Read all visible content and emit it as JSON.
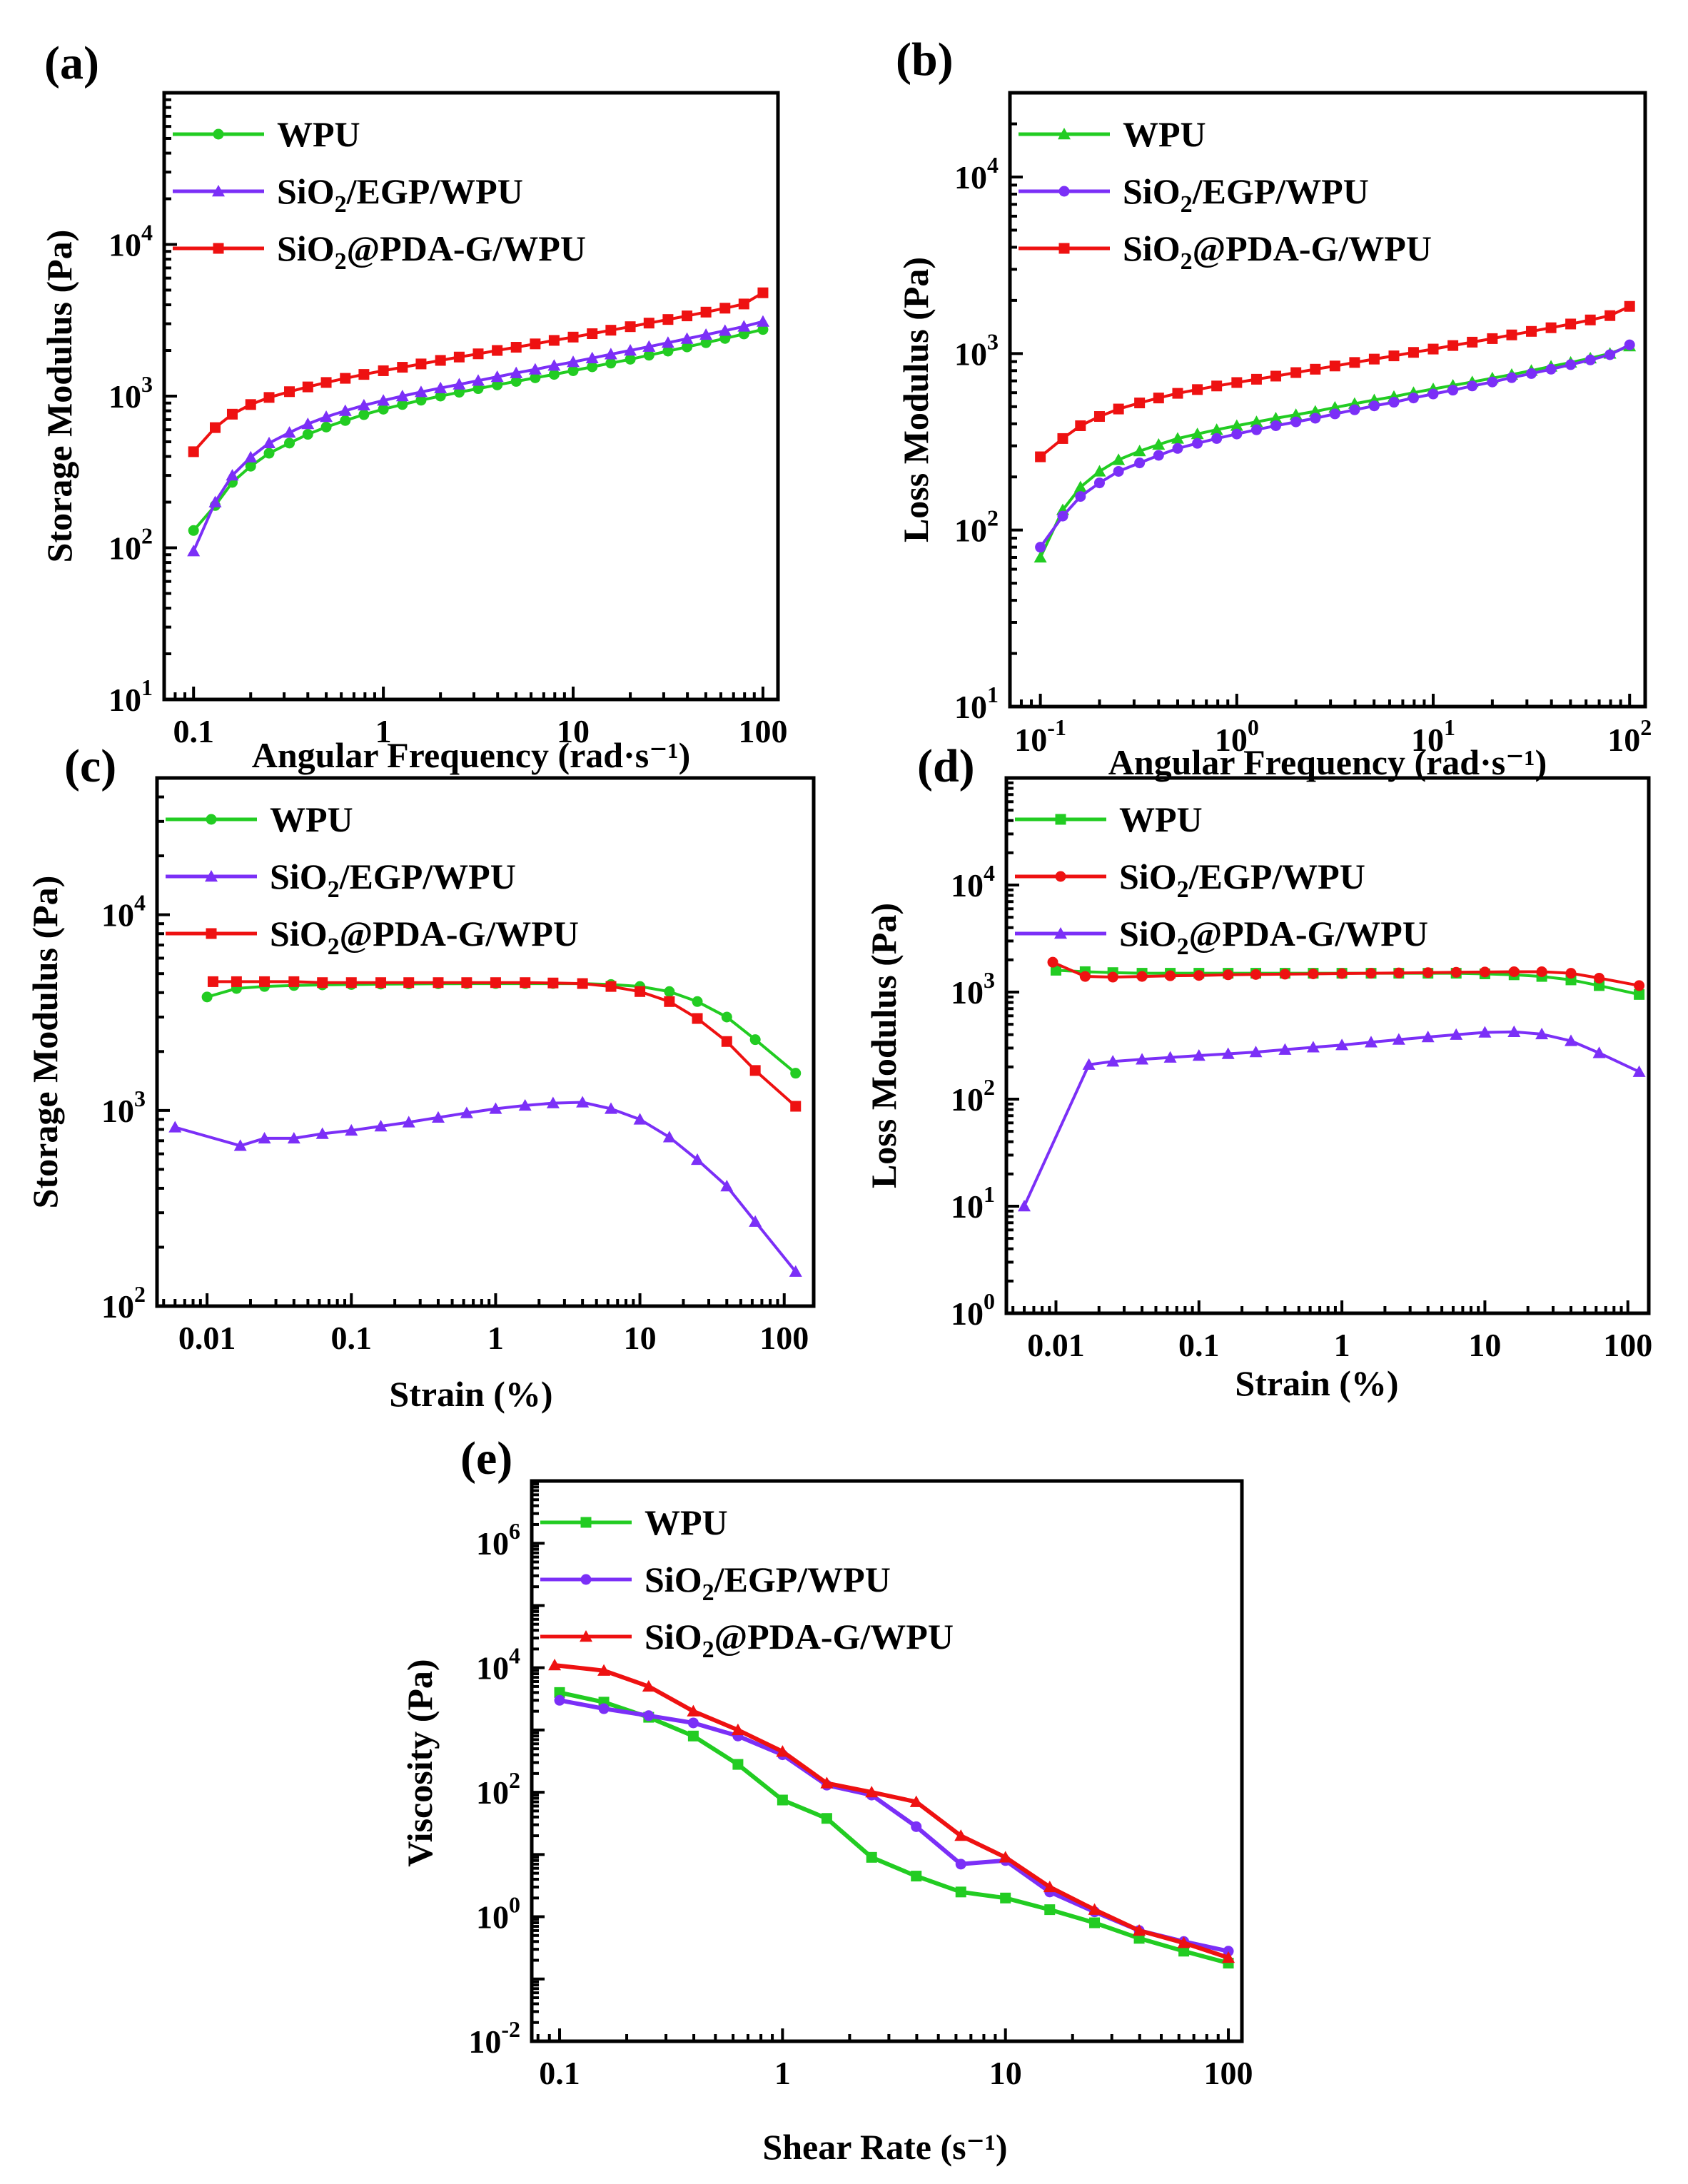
{
  "chart_data": [
    {
      "type": "line",
      "panel": "(a)",
      "xlabel": "Angular Frequency (rad·s⁻¹)",
      "ylabel": "Storage Modulus (Pa)",
      "xscale": "log",
      "yscale": "log",
      "xlim": [
        0.07,
        120
      ],
      "ylim": [
        10,
        100000
      ],
      "xticks": [
        0.1,
        1,
        10,
        100
      ],
      "xtick_labels": [
        "0.1",
        "1",
        "10",
        "100"
      ],
      "yticks": [
        10,
        100,
        1000,
        10000
      ],
      "ytick_labels": [
        {
          "base": "10",
          "exp": "1"
        },
        {
          "base": "10",
          "exp": "2"
        },
        {
          "base": "10",
          "exp": "3"
        },
        {
          "base": "10",
          "exp": "4"
        }
      ],
      "legend": "top-left",
      "series": [
        {
          "name": "WPU",
          "color": "#22cc22",
          "marker": "circle",
          "x": [
            0.1,
            0.13,
            0.16,
            0.2,
            0.25,
            0.32,
            0.4,
            0.5,
            0.63,
            0.79,
            1,
            1.26,
            1.58,
            2,
            2.51,
            3.16,
            3.98,
            5.01,
            6.31,
            7.94,
            10,
            12.6,
            15.8,
            20,
            25.1,
            31.6,
            39.8,
            50.1,
            63.1,
            79.4,
            100
          ],
          "y": [
            130,
            190,
            270,
            345,
            420,
            490,
            560,
            625,
            690,
            755,
            820,
            880,
            940,
            1000,
            1060,
            1120,
            1185,
            1250,
            1320,
            1390,
            1470,
            1560,
            1650,
            1750,
            1860,
            1980,
            2110,
            2250,
            2400,
            2570,
            2750
          ]
        },
        {
          "name": "SiO₂/EGP/WPU",
          "color": "#7b2ff7",
          "marker": "triangle",
          "x": [
            0.1,
            0.13,
            0.16,
            0.2,
            0.25,
            0.32,
            0.4,
            0.5,
            0.63,
            0.79,
            1,
            1.26,
            1.58,
            2,
            2.51,
            3.16,
            3.98,
            5.01,
            6.31,
            7.94,
            10,
            12.6,
            15.8,
            20,
            25.1,
            31.6,
            39.8,
            50.1,
            63.1,
            79.4,
            100
          ],
          "y": [
            95,
            200,
            300,
            395,
            490,
            575,
            655,
            730,
            800,
            870,
            935,
            1000,
            1065,
            1130,
            1195,
            1265,
            1340,
            1420,
            1500,
            1590,
            1680,
            1780,
            1890,
            2000,
            2120,
            2250,
            2390,
            2540,
            2700,
            2880,
            3100
          ]
        },
        {
          "name": "SiO₂@PDA-G/WPU",
          "color": "#ee1111",
          "marker": "square",
          "x": [
            0.1,
            0.13,
            0.16,
            0.2,
            0.25,
            0.32,
            0.4,
            0.5,
            0.63,
            0.79,
            1,
            1.26,
            1.58,
            2,
            2.51,
            3.16,
            3.98,
            5.01,
            6.31,
            7.94,
            10,
            12.6,
            15.8,
            20,
            25.1,
            31.6,
            39.8,
            50.1,
            63.1,
            79.4,
            100
          ],
          "y": [
            430,
            620,
            760,
            880,
            980,
            1070,
            1150,
            1230,
            1310,
            1390,
            1470,
            1550,
            1630,
            1720,
            1810,
            1900,
            2000,
            2100,
            2210,
            2330,
            2450,
            2580,
            2720,
            2870,
            3030,
            3200,
            3380,
            3580,
            3800,
            4050,
            4800
          ]
        }
      ]
    },
    {
      "type": "line",
      "panel": "(b)",
      "xlabel": "Angular Frequency (rad·s⁻¹)",
      "ylabel": "Loss Modulus (Pa)",
      "xscale": "log",
      "yscale": "log",
      "xlim": [
        0.07,
        120
      ],
      "ylim": [
        10,
        30000
      ],
      "xticks": [
        0.1,
        1,
        10,
        100
      ],
      "xtick_labels": [
        {
          "base": "10",
          "exp": "-1"
        },
        {
          "base": "10",
          "exp": "0"
        },
        {
          "base": "10",
          "exp": "1"
        },
        {
          "base": "10",
          "exp": "2"
        }
      ],
      "yticks": [
        10,
        100,
        1000,
        10000
      ],
      "ytick_labels": [
        {
          "base": "10",
          "exp": "1"
        },
        {
          "base": "10",
          "exp": "2"
        },
        {
          "base": "10",
          "exp": "3"
        },
        {
          "base": "10",
          "exp": "4"
        }
      ],
      "legend": "top-left",
      "series": [
        {
          "name": "WPU",
          "color": "#22cc22",
          "marker": "triangle",
          "x": [
            0.1,
            0.13,
            0.16,
            0.2,
            0.25,
            0.32,
            0.4,
            0.5,
            0.63,
            0.79,
            1,
            1.26,
            1.58,
            2,
            2.51,
            3.16,
            3.98,
            5.01,
            6.31,
            7.94,
            10,
            12.6,
            15.8,
            20,
            25.1,
            31.6,
            39.8,
            50.1,
            63.1,
            79.4,
            100
          ],
          "y": [
            70,
            130,
            175,
            215,
            250,
            280,
            305,
            330,
            350,
            370,
            390,
            410,
            430,
            450,
            470,
            495,
            520,
            545,
            570,
            600,
            630,
            660,
            690,
            725,
            760,
            800,
            845,
            890,
            940,
            1000,
            1100
          ]
        },
        {
          "name": "SiO₂/EGP/WPU",
          "color": "#7b2ff7",
          "marker": "circle",
          "x": [
            0.1,
            0.13,
            0.16,
            0.2,
            0.25,
            0.32,
            0.4,
            0.5,
            0.63,
            0.79,
            1,
            1.26,
            1.58,
            2,
            2.51,
            3.16,
            3.98,
            5.01,
            6.31,
            7.94,
            10,
            12.6,
            15.8,
            20,
            25.1,
            31.6,
            39.8,
            50.1,
            63.1,
            79.4,
            100
          ],
          "y": [
            80,
            120,
            155,
            185,
            215,
            240,
            265,
            290,
            310,
            330,
            350,
            370,
            390,
            410,
            430,
            455,
            480,
            505,
            530,
            560,
            590,
            620,
            655,
            690,
            730,
            770,
            815,
            865,
            920,
            985,
            1120
          ]
        },
        {
          "name": "SiO₂@PDA-G/WPU",
          "color": "#ee1111",
          "marker": "square",
          "x": [
            0.1,
            0.13,
            0.16,
            0.2,
            0.25,
            0.32,
            0.4,
            0.5,
            0.63,
            0.79,
            1,
            1.26,
            1.58,
            2,
            2.51,
            3.16,
            3.98,
            5.01,
            6.31,
            7.94,
            10,
            12.6,
            15.8,
            20,
            25.1,
            31.6,
            39.8,
            50.1,
            63.1,
            79.4,
            100
          ],
          "y": [
            260,
            330,
            390,
            440,
            485,
            525,
            560,
            595,
            625,
            655,
            685,
            715,
            745,
            780,
            815,
            850,
            890,
            930,
            970,
            1015,
            1060,
            1110,
            1160,
            1215,
            1275,
            1335,
            1400,
            1470,
            1550,
            1640,
            1850
          ]
        }
      ]
    },
    {
      "type": "line",
      "panel": "(c)",
      "xlabel": "Strain (%)",
      "ylabel": "Storage Modulus (Pa)",
      "xscale": "log",
      "yscale": "log",
      "xlim": [
        0.0045,
        160
      ],
      "ylim": [
        100,
        50000
      ],
      "xticks": [
        0.01,
        0.1,
        1,
        10,
        100
      ],
      "xtick_labels": [
        "0.01",
        "0.1",
        "1",
        "10",
        "100"
      ],
      "yticks": [
        100,
        1000,
        10000
      ],
      "ytick_labels": [
        {
          "base": "10",
          "exp": "2"
        },
        {
          "base": "10",
          "exp": "3"
        },
        {
          "base": "10",
          "exp": "4"
        }
      ],
      "legend": "top-left",
      "series": [
        {
          "name": "WPU",
          "color": "#22cc22",
          "marker": "circle",
          "x": [
            0.01,
            0.016,
            0.025,
            0.04,
            0.063,
            0.1,
            0.16,
            0.25,
            0.4,
            0.63,
            1,
            1.6,
            2.5,
            4,
            6.3,
            10,
            16,
            25,
            40,
            63,
            120
          ],
          "y": [
            3800,
            4200,
            4300,
            4350,
            4380,
            4400,
            4420,
            4430,
            4440,
            4450,
            4450,
            4450,
            4450,
            4450,
            4400,
            4300,
            4050,
            3600,
            3000,
            2300,
            1550
          ]
        },
        {
          "name": "SiO₂/EGP/WPU",
          "color": "#7b2ff7",
          "marker": "triangle",
          "x": [
            0.006,
            0.017,
            0.025,
            0.04,
            0.063,
            0.1,
            0.16,
            0.25,
            0.4,
            0.63,
            1,
            1.6,
            2.5,
            4,
            6.3,
            10,
            16,
            25,
            40,
            63,
            120
          ],
          "y": [
            820,
            660,
            720,
            720,
            760,
            790,
            830,
            870,
            920,
            970,
            1020,
            1060,
            1090,
            1100,
            1020,
            900,
            730,
            560,
            410,
            270,
            150
          ]
        },
        {
          "name": "SiO₂@PDA-G/WPU",
          "color": "#ee1111",
          "marker": "square",
          "x": [
            0.011,
            0.016,
            0.025,
            0.04,
            0.063,
            0.1,
            0.16,
            0.25,
            0.4,
            0.63,
            1,
            1.6,
            2.5,
            4,
            6.3,
            10,
            16,
            25,
            40,
            63,
            120
          ],
          "y": [
            4550,
            4550,
            4550,
            4550,
            4500,
            4500,
            4500,
            4500,
            4500,
            4500,
            4500,
            4500,
            4480,
            4450,
            4300,
            4050,
            3600,
            2950,
            2250,
            1600,
            1050
          ]
        }
      ]
    },
    {
      "type": "line",
      "panel": "(d)",
      "xlabel": "Strain (%)",
      "ylabel": "Loss Modulus (Pa)",
      "xscale": "log",
      "yscale": "log",
      "xlim": [
        0.0045,
        140
      ],
      "ylim": [
        1,
        100000
      ],
      "xticks": [
        0.01,
        0.1,
        1,
        10,
        100
      ],
      "xtick_labels": [
        "0.01",
        "0.1",
        "1",
        "10",
        "100"
      ],
      "yticks": [
        1,
        10,
        100,
        1000,
        10000
      ],
      "ytick_labels": [
        {
          "base": "10",
          "exp": "0"
        },
        {
          "base": "10",
          "exp": "1"
        },
        {
          "base": "10",
          "exp": "2"
        },
        {
          "base": "10",
          "exp": "3"
        },
        {
          "base": "10",
          "exp": "4"
        }
      ],
      "legend": "top-left",
      "series": [
        {
          "name": "WPU",
          "color": "#22cc22",
          "marker": "square",
          "x": [
            0.01,
            0.016,
            0.025,
            0.04,
            0.063,
            0.1,
            0.16,
            0.25,
            0.4,
            0.63,
            1,
            1.6,
            2.5,
            4,
            6.3,
            10,
            16,
            25,
            40,
            63,
            120
          ],
          "y": [
            1600,
            1550,
            1520,
            1500,
            1500,
            1500,
            1500,
            1500,
            1500,
            1500,
            1500,
            1500,
            1500,
            1500,
            1500,
            1480,
            1450,
            1400,
            1300,
            1150,
            950
          ]
        },
        {
          "name": "SiO₂/EGP/WPU",
          "color": "#ee1111",
          "marker": "circle",
          "x": [
            0.0095,
            0.016,
            0.025,
            0.04,
            0.063,
            0.1,
            0.16,
            0.25,
            0.4,
            0.63,
            1,
            1.6,
            2.5,
            4,
            6.3,
            10,
            16,
            25,
            40,
            63,
            120
          ],
          "y": [
            1900,
            1400,
            1380,
            1400,
            1420,
            1430,
            1450,
            1460,
            1470,
            1480,
            1490,
            1500,
            1510,
            1520,
            1530,
            1540,
            1550,
            1550,
            1500,
            1350,
            1150
          ]
        },
        {
          "name": "SiO₂@PDA-G/WPU",
          "color": "#7b2ff7",
          "marker": "triangle",
          "x": [
            0.006,
            0.017,
            0.025,
            0.04,
            0.063,
            0.1,
            0.16,
            0.25,
            0.4,
            0.63,
            1,
            1.6,
            2.5,
            4,
            6.3,
            10,
            16,
            25,
            40,
            63,
            120
          ],
          "y": [
            10,
            210,
            225,
            235,
            245,
            255,
            265,
            275,
            290,
            305,
            320,
            340,
            360,
            380,
            400,
            420,
            425,
            405,
            350,
            270,
            180
          ]
        }
      ]
    },
    {
      "type": "line",
      "panel": "(e)",
      "xlabel": "Shear Rate (s⁻¹)",
      "ylabel": "Viscosity (Pa)",
      "xscale": "log",
      "yscale": "log",
      "xlim": [
        0.075,
        115
      ],
      "ylim": [
        0.01,
        10000000
      ],
      "xticks": [
        0.1,
        1,
        10,
        100
      ],
      "xtick_labels": [
        "0.1",
        "1",
        "10",
        "100"
      ],
      "yticks": [
        0.01,
        1,
        100,
        10000,
        1000000
      ],
      "ytick_labels": [
        {
          "base": "10",
          "exp": "-2"
        },
        {
          "base": "10",
          "exp": "0"
        },
        {
          "base": "10",
          "exp": "2"
        },
        {
          "base": "10",
          "exp": "4"
        },
        {
          "base": "10",
          "exp": "6"
        }
      ],
      "legend": "top-left",
      "series": [
        {
          "name": "WPU",
          "color": "#22cc22",
          "marker": "square",
          "x": [
            0.1,
            0.158,
            0.251,
            0.398,
            0.631,
            1,
            1.58,
            2.51,
            3.98,
            6.31,
            10,
            15.8,
            25.1,
            39.8,
            63.1,
            100
          ],
          "y": [
            4000,
            2800,
            1600,
            800,
            280,
            75,
            38,
            9,
            4.5,
            2.5,
            2,
            1.3,
            0.8,
            0.45,
            0.28,
            0.18
          ]
        },
        {
          "name": "SiO₂/EGP/WPU",
          "color": "#7b2ff7",
          "marker": "circle",
          "x": [
            0.1,
            0.158,
            0.251,
            0.398,
            0.631,
            1,
            1.58,
            2.51,
            3.98,
            6.31,
            10,
            15.8,
            25.1,
            39.8,
            63.1,
            100
          ],
          "y": [
            3000,
            2200,
            1700,
            1300,
            800,
            400,
            130,
            90,
            28,
            7,
            8,
            2.5,
            1.2,
            0.6,
            0.4,
            0.28
          ]
        },
        {
          "name": "SiO₂@PDA-G/WPU",
          "color": "#ee1111",
          "marker": "triangle",
          "x": [
            0.095,
            0.158,
            0.251,
            0.398,
            0.631,
            1,
            1.58,
            2.51,
            3.98,
            6.31,
            10,
            15.8,
            25.1,
            39.8,
            63.1,
            100
          ],
          "y": [
            11000,
            9000,
            5000,
            2000,
            1000,
            450,
            140,
            100,
            70,
            20,
            9,
            3,
            1.3,
            0.6,
            0.38,
            0.22
          ]
        }
      ]
    }
  ]
}
